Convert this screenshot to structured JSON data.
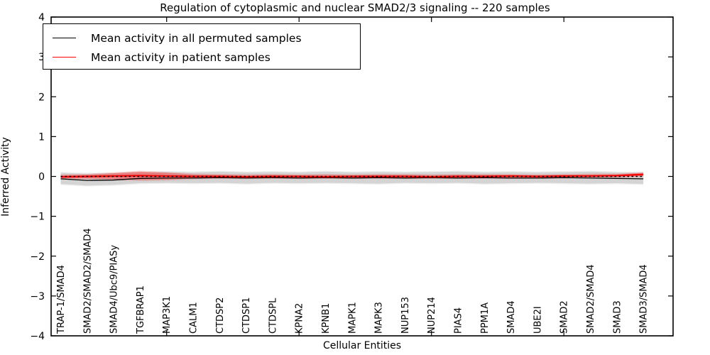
{
  "figure": {
    "title": "Regulation of cytoplasmic and nuclear SMAD2/3 signaling -- 220 samples",
    "xlabel": "Cellular Entities",
    "ylabel": "Inferred Activity"
  },
  "legend": {
    "items": [
      {
        "label": "Mean activity in all permuted samples",
        "color": "#000000"
      },
      {
        "label": "Mean activity in patient samples",
        "color": "#ff0000"
      }
    ]
  },
  "chart_data": {
    "type": "line",
    "title": "Regulation of cytoplasmic and nuclear SMAD2/3 signaling -- 220 samples",
    "xlabel": "Cellular Entities",
    "ylabel": "Inferred Activity",
    "ylim": [
      -4,
      4
    ],
    "yticks": [
      -4,
      -3,
      -2,
      -1,
      0,
      1,
      2,
      3,
      4
    ],
    "grid": false,
    "legend_position": "upper left",
    "categories": [
      "TRAP-1/SMAD4",
      "SMAD2/SMAD2/SMAD4",
      "SMAD4/Ubc9/PIASy",
      "TGFBRAP1",
      "MAP3K1",
      "CALM1",
      "CTDSP2",
      "CTDSP1",
      "CTDSPL",
      "KPNA2",
      "KPNB1",
      "MAPK1",
      "MAPK3",
      "NUP153",
      "NUP214",
      "PIAS4",
      "PPM1A",
      "SMAD4",
      "UBE2I",
      "SMAD2",
      "SMAD2/SMAD4",
      "SMAD3",
      "SMAD3/SMAD4"
    ],
    "major_x_tick_indices": [
      4,
      9,
      14,
      19
    ],
    "series": [
      {
        "name": "Mean activity in all permuted samples",
        "color": "#000000",
        "style": "solid",
        "values": [
          -0.06,
          -0.1,
          -0.09,
          -0.05,
          -0.04,
          -0.04,
          -0.03,
          -0.04,
          -0.03,
          -0.04,
          -0.03,
          -0.04,
          -0.03,
          -0.04,
          -0.03,
          -0.04,
          -0.03,
          -0.04,
          -0.04,
          -0.03,
          -0.04,
          -0.05,
          -0.06
        ]
      },
      {
        "name": "Mean activity in patient samples",
        "color": "#ff0000",
        "style": "solid",
        "values": [
          -0.01,
          0.0,
          0.01,
          0.02,
          0.01,
          0.0,
          0.0,
          -0.01,
          0.0,
          0.0,
          -0.01,
          0.0,
          0.0,
          0.0,
          -0.01,
          0.0,
          0.0,
          0.01,
          0.0,
          0.01,
          0.01,
          0.02,
          0.05
        ]
      }
    ],
    "bands": [
      {
        "name": "permuted-samples-range",
        "color": "#aaaaaa",
        "opacity": 0.4,
        "upper": [
          0.09,
          0.07,
          0.08,
          0.1,
          0.11,
          0.1,
          0.12,
          0.1,
          0.11,
          0.1,
          0.12,
          0.1,
          0.11,
          0.1,
          0.11,
          0.12,
          0.1,
          0.11,
          0.1,
          0.11,
          0.12,
          0.1,
          0.09
        ],
        "lower": [
          -0.19,
          -0.23,
          -0.21,
          -0.17,
          -0.16,
          -0.17,
          -0.16,
          -0.18,
          -0.16,
          -0.17,
          -0.16,
          -0.17,
          -0.18,
          -0.16,
          -0.17,
          -0.16,
          -0.18,
          -0.17,
          -0.16,
          -0.17,
          -0.18,
          -0.17,
          -0.19
        ]
      },
      {
        "name": "patient-samples-range",
        "color": "#ff0000",
        "opacity": 0.3,
        "upper": [
          0.03,
          0.04,
          0.08,
          0.12,
          0.09,
          0.05,
          0.04,
          0.03,
          0.04,
          0.03,
          0.04,
          0.03,
          0.04,
          0.04,
          0.03,
          0.04,
          0.04,
          0.04,
          0.03,
          0.04,
          0.05,
          0.05,
          0.09
        ],
        "lower": [
          -0.05,
          -0.05,
          -0.07,
          -0.09,
          -0.08,
          -0.05,
          -0.04,
          -0.04,
          -0.04,
          -0.04,
          -0.04,
          -0.04,
          -0.04,
          -0.04,
          -0.04,
          -0.04,
          -0.04,
          -0.04,
          -0.03,
          -0.03,
          -0.02,
          -0.01,
          0.01
        ]
      }
    ],
    "zero_line": {
      "y": 0,
      "color": "#000000",
      "style": "dashed"
    }
  }
}
